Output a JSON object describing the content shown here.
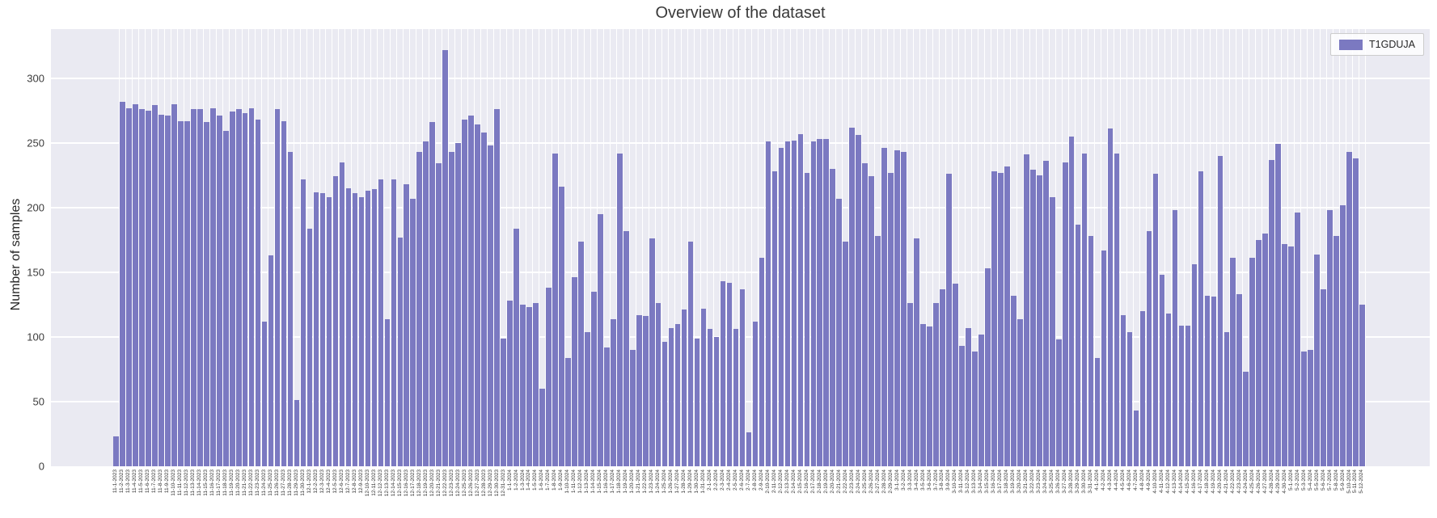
{
  "title": "Overview of the dataset",
  "y_axis": {
    "label": "Number of samples",
    "ticks": [
      0,
      50,
      100,
      150,
      200,
      250,
      300
    ]
  },
  "legend": {
    "label": "T1GDUJA",
    "swatch_color": "#7b79c1",
    "position": "upper right"
  },
  "colors": {
    "bar": "#7b79c1",
    "plot_background": "#eaeaf2",
    "gridline": "#ffffff",
    "text": "#262626",
    "figure_background": "#ffffff"
  },
  "chart_data": {
    "type": "bar",
    "title": "Overview of the dataset",
    "xlabel": "",
    "ylabel": "Number of samples",
    "ylim": [
      0,
      338
    ],
    "yticks": [
      0,
      50,
      100,
      150,
      200,
      250,
      300
    ],
    "grid": true,
    "legend_entries": [
      "T1GDUJA"
    ],
    "legend_position": "upper right",
    "bar_color": "#7b79c1",
    "categories": [
      "11-1-2023",
      "11-2-2023",
      "11-3-2023",
      "11-4-2023",
      "11-5-2023",
      "11-6-2023",
      "11-7-2023",
      "11-8-2023",
      "11-9-2023",
      "11-10-2023",
      "11-11-2023",
      "11-12-2023",
      "11-13-2023",
      "11-14-2023",
      "11-15-2023",
      "11-16-2023",
      "11-17-2023",
      "11-18-2023",
      "11-19-2023",
      "11-20-2023",
      "11-21-2023",
      "11-22-2023",
      "11-23-2023",
      "11-24-2023",
      "11-25-2023",
      "11-26-2023",
      "11-27-2023",
      "11-28-2023",
      "11-29-2023",
      "11-30-2023",
      "12-1-2023",
      "12-2-2023",
      "12-3-2023",
      "12-4-2023",
      "12-5-2023",
      "12-6-2023",
      "12-7-2023",
      "12-8-2023",
      "12-9-2023",
      "12-10-2023",
      "12-11-2023",
      "12-12-2023",
      "12-13-2023",
      "12-14-2023",
      "12-15-2023",
      "12-16-2023",
      "12-17-2023",
      "12-18-2023",
      "12-19-2023",
      "12-20-2023",
      "12-21-2023",
      "12-22-2023",
      "12-23-2023",
      "12-24-2023",
      "12-25-2023",
      "12-26-2023",
      "12-27-2023",
      "12-28-2023",
      "12-29-2023",
      "12-30-2023",
      "12-31-2023",
      "1-1-2024",
      "1-2-2024",
      "1-3-2024",
      "1-4-2024",
      "1-5-2024",
      "1-6-2024",
      "1-7-2024",
      "1-8-2024",
      "1-9-2024",
      "1-10-2024",
      "1-11-2024",
      "1-12-2024",
      "1-13-2024",
      "1-14-2024",
      "1-15-2024",
      "1-16-2024",
      "1-17-2024",
      "1-18-2024",
      "1-19-2024",
      "1-20-2024",
      "1-21-2024",
      "1-22-2024",
      "1-23-2024",
      "1-24-2024",
      "1-25-2024",
      "1-26-2024",
      "1-27-2024",
      "1-28-2024",
      "1-29-2024",
      "1-30-2024",
      "1-31-2024",
      "2-1-2024",
      "2-2-2024",
      "2-3-2024",
      "2-4-2024",
      "2-5-2024",
      "2-6-2024",
      "2-7-2024",
      "2-8-2024",
      "2-9-2024",
      "2-10-2024",
      "2-11-2024",
      "2-12-2024",
      "2-13-2024",
      "2-14-2024",
      "2-15-2024",
      "2-16-2024",
      "2-17-2024",
      "2-18-2024",
      "2-19-2024",
      "2-20-2024",
      "2-21-2024",
      "2-22-2024",
      "2-23-2024",
      "2-24-2024",
      "2-25-2024",
      "2-26-2024",
      "2-27-2024",
      "2-28-2024",
      "2-29-2024",
      "3-1-2024",
      "3-2-2024",
      "3-3-2024",
      "3-4-2024",
      "3-5-2024",
      "3-6-2024",
      "3-7-2024",
      "3-8-2024",
      "3-9-2024",
      "3-10-2024",
      "3-11-2024",
      "3-12-2024",
      "3-13-2024",
      "3-14-2024",
      "3-15-2024",
      "3-16-2024",
      "3-17-2024",
      "3-18-2024",
      "3-19-2024",
      "3-20-2024",
      "3-21-2024",
      "3-22-2024",
      "3-23-2024",
      "3-24-2024",
      "3-25-2024",
      "3-26-2024",
      "3-27-2024",
      "3-28-2024",
      "3-29-2024",
      "3-30-2024",
      "3-31-2024",
      "4-1-2024",
      "4-2-2024",
      "4-3-2024",
      "4-4-2024",
      "4-5-2024",
      "4-6-2024",
      "4-7-2024",
      "4-8-2024",
      "4-9-2024",
      "4-10-2024",
      "4-11-2024",
      "4-12-2024",
      "4-13-2024",
      "4-14-2024",
      "4-15-2024",
      "4-16-2024",
      "4-17-2024",
      "4-18-2024",
      "4-19-2024",
      "4-20-2024",
      "4-21-2024",
      "4-22-2024",
      "4-23-2024",
      "4-24-2024",
      "4-25-2024",
      "4-26-2024",
      "4-27-2024",
      "4-28-2024",
      "4-29-2024",
      "4-30-2024",
      "5-1-2024",
      "5-2-2024",
      "5-3-2024",
      "5-4-2024",
      "5-5-2024",
      "5-6-2024",
      "5-7-2024",
      "5-8-2024",
      "5-9-2024",
      "5-10-2024",
      "5-11-2024",
      "5-12-2024"
    ],
    "values": [
      23,
      282,
      277,
      280,
      276,
      275,
      279,
      272,
      271,
      280,
      267,
      267,
      276,
      276,
      266,
      277,
      271,
      259,
      274,
      276,
      273,
      277,
      268,
      112,
      163,
      276,
      267,
      243,
      51,
      222,
      184,
      212,
      211,
      208,
      224,
      235,
      215,
      211,
      208,
      213,
      214,
      222,
      114,
      222,
      177,
      218,
      207,
      243,
      251,
      266,
      234,
      322,
      243,
      250,
      268,
      271,
      264,
      258,
      248,
      276,
      99,
      128,
      184,
      125,
      123,
      126,
      60,
      138,
      242,
      216,
      84,
      146,
      174,
      104,
      135,
      195,
      92,
      114,
      242,
      182,
      90,
      117,
      116,
      176,
      126,
      96,
      107,
      110,
      121,
      174,
      99,
      122,
      106,
      100,
      143,
      142,
      106,
      137,
      26,
      112,
      161,
      251,
      228,
      246,
      251,
      252,
      257,
      227,
      251,
      253,
      253,
      230,
      207,
      174,
      262,
      256,
      234,
      224,
      178,
      246,
      227,
      244,
      243,
      126,
      176,
      110,
      108,
      126,
      137,
      226,
      141,
      93,
      107,
      89,
      102,
      153,
      228,
      227,
      232,
      132,
      114,
      241,
      229,
      225,
      236,
      208,
      98,
      235,
      255,
      187,
      242,
      178,
      84,
      167,
      261,
      242,
      117,
      104,
      43,
      120,
      182,
      226,
      148,
      118,
      198,
      109,
      109,
      156,
      228,
      132,
      131,
      240,
      104,
      161,
      133,
      73,
      161,
      175,
      180,
      237,
      249,
      172,
      170,
      196,
      89,
      90,
      164,
      137,
      198,
      178,
      202,
      243,
      238,
      125
    ]
  }
}
